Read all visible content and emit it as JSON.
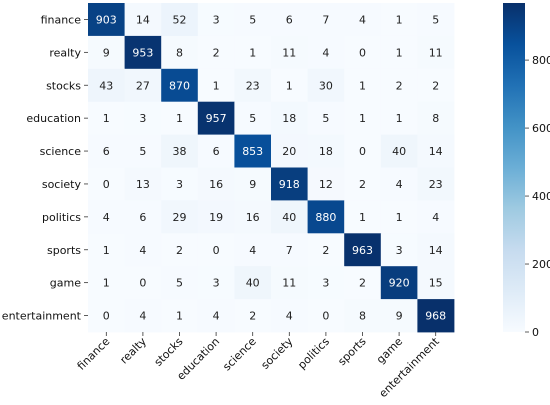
{
  "chart_data": {
    "type": "heatmap",
    "title": "",
    "xlabel": "",
    "ylabel": "",
    "row_labels": [
      "finance",
      "realty",
      "stocks",
      "education",
      "science",
      "society",
      "politics",
      "sports",
      "game",
      "entertainment"
    ],
    "col_labels": [
      "finance",
      "realty",
      "stocks",
      "education",
      "science",
      "society",
      "politics",
      "sports",
      "game",
      "entertainment"
    ],
    "values": [
      [
        903,
        14,
        52,
        3,
        5,
        6,
        7,
        4,
        1,
        5
      ],
      [
        9,
        953,
        8,
        2,
        1,
        11,
        4,
        0,
        1,
        11
      ],
      [
        43,
        27,
        870,
        1,
        23,
        1,
        30,
        1,
        2,
        2
      ],
      [
        1,
        3,
        1,
        957,
        5,
        18,
        5,
        1,
        1,
        8
      ],
      [
        6,
        5,
        38,
        6,
        853,
        20,
        18,
        0,
        40,
        14
      ],
      [
        0,
        13,
        3,
        16,
        9,
        918,
        12,
        2,
        4,
        23
      ],
      [
        4,
        6,
        29,
        19,
        16,
        40,
        880,
        1,
        1,
        4
      ],
      [
        1,
        4,
        2,
        0,
        4,
        7,
        2,
        963,
        3,
        14
      ],
      [
        1,
        0,
        5,
        3,
        40,
        11,
        3,
        2,
        920,
        15
      ],
      [
        0,
        4,
        1,
        4,
        2,
        4,
        0,
        8,
        9,
        968
      ]
    ],
    "colormap": "Blues",
    "color_low": "#f7fbff",
    "color_high": "#08306b",
    "colorbar": {
      "range": [
        0,
        968
      ],
      "ticks": [
        0,
        200,
        400,
        600,
        800
      ]
    }
  }
}
